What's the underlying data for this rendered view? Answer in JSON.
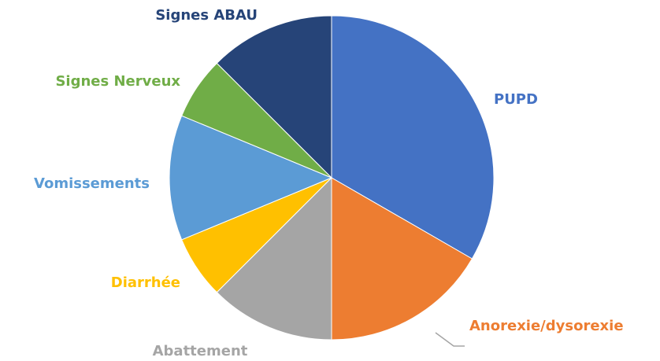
{
  "chart_data": {
    "type": "pie",
    "categories": [
      "PUPD",
      "Anorexie/dysorexie",
      "Abattement",
      "Diarrhée",
      "Vomissements",
      "Signes Nerveux",
      "Signes ABAU"
    ],
    "values": [
      16,
      8,
      6,
      3,
      6,
      3,
      6
    ],
    "colors": [
      "#4472c4",
      "#ed7d31",
      "#a5a5a5",
      "#ffc000",
      "#5b9bd5",
      "#70ad47",
      "#264478"
    ]
  }
}
